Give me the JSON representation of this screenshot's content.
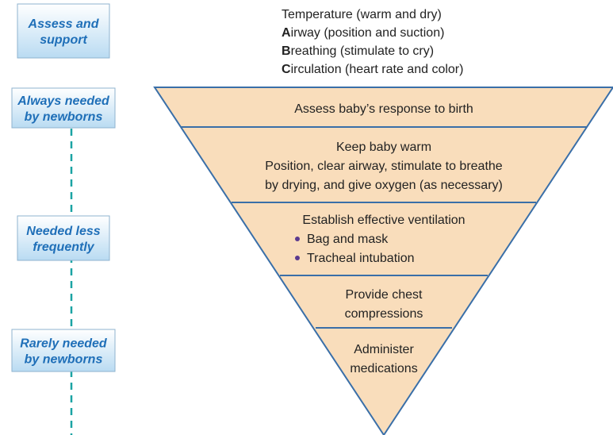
{
  "side_labels": [
    [
      "Assess and",
      "support"
    ],
    [
      "Always needed",
      "by newborns"
    ],
    [
      "Needed less",
      "frequently"
    ],
    [
      "Rarely needed",
      "by newborns"
    ]
  ],
  "steps": [
    {
      "text": "Temperature (warm and dry)"
    },
    {
      "initial": "A",
      "rest": "irway (position and suction)"
    },
    {
      "initial": "B",
      "rest": "reathing (stimulate to cry)"
    },
    {
      "initial": "C",
      "rest": "irculation (heart rate and color)"
    }
  ],
  "pyramid": [
    {
      "lines": [
        "Assess baby’s response to birth"
      ]
    },
    {
      "lines": [
        "Keep baby warm",
        "Position, clear airway, stimulate to breathe",
        "by drying, and give oxygen (as necessary)"
      ]
    },
    {
      "lines": [
        "Establish effective ventilation"
      ],
      "bullets": [
        "Bag and mask",
        "Tracheal intubation"
      ]
    },
    {
      "lines": [
        "Provide chest",
        "compressions"
      ]
    },
    {
      "lines": [
        "Administer",
        "medications"
      ]
    }
  ]
}
